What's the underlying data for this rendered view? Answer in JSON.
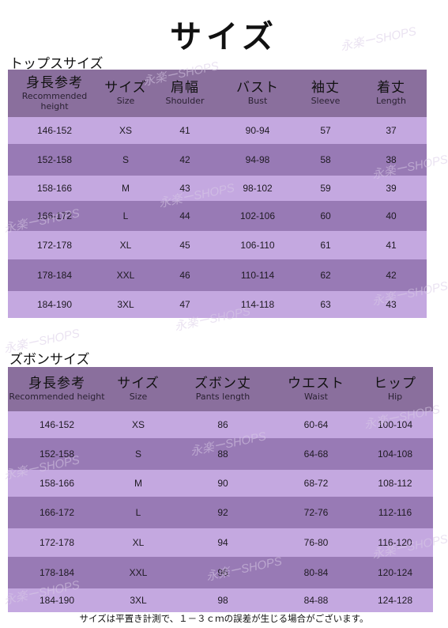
{
  "page_title": "サイズ",
  "watermark_text": "永楽ーSHOPS",
  "tops": {
    "section_title": "トップスサイズ",
    "headers": [
      {
        "jp": "身長参考",
        "en": "Recommended height"
      },
      {
        "jp": "サイズ",
        "en": "Size"
      },
      {
        "jp": "肩幅",
        "en": "Shoulder"
      },
      {
        "jp": "バスト",
        "en": "Bust"
      },
      {
        "jp": "袖丈",
        "en": "Sleeve"
      },
      {
        "jp": "着丈",
        "en": "Length"
      }
    ],
    "rows": [
      [
        "146-152",
        "XS",
        "41",
        "90-94",
        "57",
        "37"
      ],
      [
        "152-158",
        "S",
        "42",
        "94-98",
        "58",
        "38"
      ],
      [
        "158-166",
        "M",
        "43",
        "98-102",
        "59",
        "39"
      ],
      [
        "166-172",
        "L",
        "44",
        "102-106",
        "60",
        "40"
      ],
      [
        "172-178",
        "XL",
        "45",
        "106-110",
        "61",
        "41"
      ],
      [
        "178-184",
        "XXL",
        "46",
        "110-114",
        "62",
        "42"
      ],
      [
        "184-190",
        "3XL",
        "47",
        "114-118",
        "63",
        "43"
      ]
    ]
  },
  "pants": {
    "section_title": "ズボンサイズ",
    "headers": [
      {
        "jp": "身長参考",
        "en": "Recommended height"
      },
      {
        "jp": "サイズ",
        "en": "Size"
      },
      {
        "jp": "ズボン丈",
        "en": "Pants length"
      },
      {
        "jp": "ウエスト",
        "en": "Waist"
      },
      {
        "jp": "ヒップ",
        "en": "Hip"
      }
    ],
    "rows": [
      [
        "146-152",
        "XS",
        "86",
        "60-64",
        "100-104"
      ],
      [
        "152-158",
        "S",
        "88",
        "64-68",
        "104-108"
      ],
      [
        "158-166",
        "M",
        "90",
        "68-72",
        "108-112"
      ],
      [
        "166-172",
        "L",
        "92",
        "72-76",
        "112-116"
      ],
      [
        "172-178",
        "XL",
        "94",
        "76-80",
        "116-120"
      ],
      [
        "178-184",
        "XXL",
        "96",
        "80-84",
        "120-124"
      ],
      [
        "184-190",
        "3XL",
        "98",
        "84-88",
        "124-128"
      ]
    ]
  },
  "footnote": "サイズは平置き計測で、１－３ｃｍの誤差が生じる場合がございます。",
  "colors": {
    "header": "#8a6f9d",
    "row_light": "#c4a8e0",
    "row_dark": "#987ab5"
  }
}
